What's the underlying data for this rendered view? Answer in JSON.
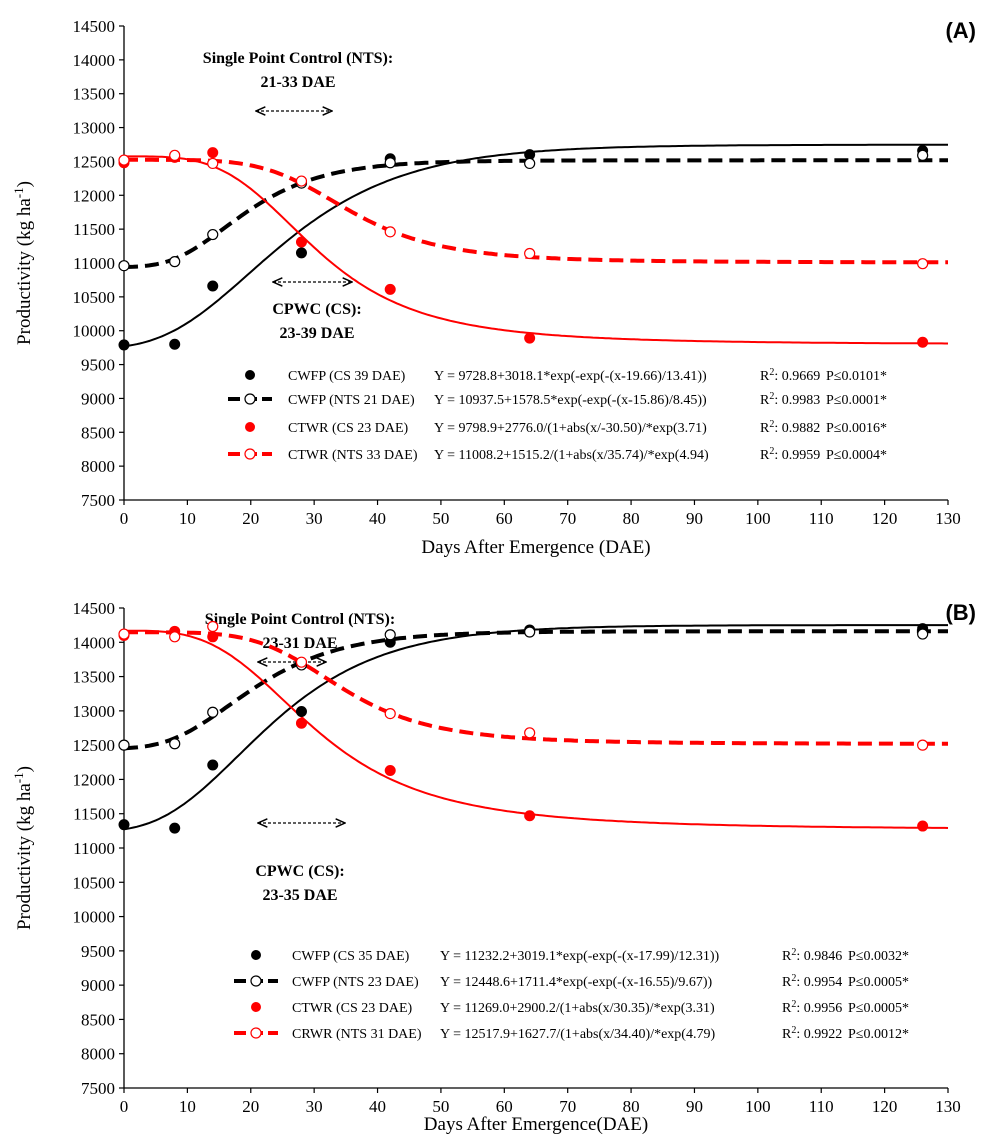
{
  "chart_data": [
    {
      "panel": "(A)",
      "type": "scatter",
      "xlabel": "Days After Emergence (DAE)",
      "ylabel": "Productivity (kg ha-1)",
      "ylabel_main": "Productivity (kg ha",
      "ylabel_sup": "-1",
      "ylabel_close": ")",
      "xlim": [
        0,
        130
      ],
      "ylim": [
        7500,
        14500
      ],
      "xticks": [
        "0",
        "10",
        "20",
        "30",
        "40",
        "50",
        "60",
        "70",
        "80",
        "90",
        "100",
        "110",
        "120",
        "130"
      ],
      "yticks": [
        "7500",
        "8000",
        "8500",
        "9000",
        "9500",
        "10000",
        "10500",
        "11000",
        "11500",
        "12000",
        "12500",
        "13000",
        "13500",
        "14000",
        "14500"
      ],
      "annotations": [
        {
          "line1": "Single Point Control (NTS):",
          "line2": "21-33 DAE"
        },
        {
          "line1": "CPWC (CS):",
          "line2": "23-39 DAE"
        }
      ],
      "series": [
        {
          "name": "CWFP (CS 39 DAE)",
          "color": "#000000",
          "marker": "filled",
          "line": "solid",
          "equation": "Y = 9728.8+3018.1*exp(-exp(-(x-19.66)/13.41))",
          "r2": ": 0.9669",
          "p": "P≤0.0101*",
          "x": [
            0,
            8,
            14,
            28,
            42,
            64,
            126
          ],
          "y": [
            9790,
            9800,
            10660,
            11150,
            12540,
            12600,
            12660
          ]
        },
        {
          "name": "CWFP (NTS 21 DAE)",
          "color": "#000000",
          "marker": "open",
          "line": "dashed",
          "equation": "Y = 10937.5+1578.5*exp(-exp(-(x-15.86)/8.45))",
          "r2": ": 0.9983",
          "p": "P≤0.0001*",
          "x": [
            0,
            8,
            14,
            28,
            42,
            64,
            126
          ],
          "y": [
            10960,
            11020,
            11420,
            12180,
            12480,
            12470,
            12590
          ]
        },
        {
          "name": "CTWR (CS 23 DAE)",
          "color": "#ff0000",
          "marker": "filled",
          "line": "solid",
          "equation": "Y = 9798.9+2776.0/(1+abs(x/-30.50)/*exp(3.71)",
          "r2": ": 0.9882",
          "p": "P≤0.0016*",
          "x": [
            0,
            8,
            14,
            28,
            42,
            64,
            126
          ],
          "y": [
            12480,
            12560,
            12630,
            11310,
            10610,
            9890,
            9830
          ]
        },
        {
          "name": "CTWR (NTS 33 DAE)",
          "color": "#ff0000",
          "marker": "open",
          "line": "dashed",
          "equation": "Y = 11008.2+1515.2/(1+abs(x/35.74)/*exp(4.94)",
          "r2": ": 0.9959",
          "p": "P≤0.0004*",
          "x": [
            0,
            8,
            14,
            28,
            42,
            64,
            126
          ],
          "y": [
            12520,
            12590,
            12470,
            12210,
            11460,
            11140,
            10990
          ]
        }
      ]
    },
    {
      "panel": "(B)",
      "type": "scatter",
      "xlabel": "Days After Emergence(DAE)",
      "ylabel": "Productivity (kg ha-1)",
      "ylabel_main": "Productivity (kg ha",
      "ylabel_sup": "-1",
      "ylabel_close": ")",
      "xlim": [
        0,
        130
      ],
      "ylim": [
        7500,
        14500
      ],
      "xticks": [
        "0",
        "10",
        "20",
        "30",
        "40",
        "50",
        "60",
        "70",
        "80",
        "90",
        "100",
        "110",
        "120",
        "130"
      ],
      "yticks": [
        "7500",
        "8000",
        "8500",
        "9000",
        "9500",
        "10000",
        "10500",
        "11000",
        "11500",
        "12000",
        "12500",
        "13000",
        "13500",
        "14000",
        "14500"
      ],
      "annotations": [
        {
          "line1": "Single Point Control (NTS):",
          "line2": "23-31 DAE"
        },
        {
          "line1": "CPWC (CS):",
          "line2": "23-35 DAE"
        }
      ],
      "series": [
        {
          "name": "CWFP (CS 35 DAE)",
          "color": "#000000",
          "marker": "filled",
          "line": "solid",
          "equation": "Y = 11232.2+3019.1*exp(-exp(-(x-17.99)/12.31))",
          "r2": ": 0.9846",
          "p": "P≤0.0032*",
          "x": [
            0,
            8,
            14,
            28,
            42,
            64,
            126
          ],
          "y": [
            11340,
            11290,
            12210,
            12990,
            14000,
            14180,
            14200
          ]
        },
        {
          "name": "CWFP (NTS 23 DAE)",
          "color": "#000000",
          "marker": "open",
          "line": "dashed",
          "equation": "Y = 12448.6+1711.4*exp(-exp(-(x-16.55)/9.67))",
          "r2": ": 0.9954",
          "p": "P≤0.0005*",
          "x": [
            0,
            8,
            14,
            28,
            42,
            64,
            126
          ],
          "y": [
            12500,
            12520,
            12980,
            13670,
            14110,
            14150,
            14120
          ]
        },
        {
          "name": "CTWR (CS 23 DAE)",
          "color": "#ff0000",
          "marker": "filled",
          "line": "solid",
          "equation": "Y = 11269.0+2900.2/(1+abs(x/30.35)/*exp(3.31)",
          "r2": ": 0.9956",
          "p": "P≤0.0005*",
          "x": [
            0,
            8,
            14,
            28,
            42,
            64,
            126
          ],
          "y": [
            14100,
            14160,
            14080,
            12820,
            12130,
            11470,
            11320
          ]
        },
        {
          "name": "CRWR (NTS 31 DAE)",
          "color": "#ff0000",
          "marker": "open",
          "line": "dashed",
          "equation": "Y = 12517.9+1627.7/(1+abs(x/34.40)/*exp(4.79)",
          "r2": ": 0.9922",
          "p": "P≤0.0012*",
          "x": [
            0,
            8,
            14,
            28,
            42,
            64,
            126
          ],
          "y": [
            14120,
            14080,
            14230,
            13710,
            12960,
            12680,
            12500
          ]
        }
      ]
    }
  ]
}
